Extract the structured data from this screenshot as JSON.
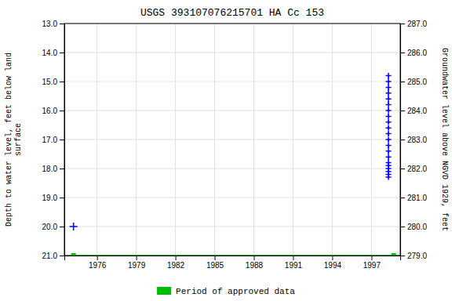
{
  "chart_data": {
    "type": "line",
    "title": "USGS 393107076215701 HA Cc 153",
    "ylabel": "Depth to water level, feet below land\nsurface",
    "y2label": "Groundwater level above NGVD 1929, feet",
    "xlim": [
      1973.5,
      1999.2
    ],
    "xticks": [
      1976,
      1979,
      1982,
      1985,
      1988,
      1991,
      1994,
      1997
    ],
    "ylim": [
      21.0,
      13.0
    ],
    "yticks": [
      {
        "value": 13.0,
        "label": "13.0"
      },
      {
        "value": 14.0,
        "label": "14.0"
      },
      {
        "value": 15.0,
        "label": "15.0"
      },
      {
        "value": 16.0,
        "label": "16.0"
      },
      {
        "value": 17.0,
        "label": "17.0"
      },
      {
        "value": 18.0,
        "label": "18.0"
      },
      {
        "value": 19.0,
        "label": "19.0"
      },
      {
        "value": 20.0,
        "label": "20.0"
      },
      {
        "value": 21.0,
        "label": "21.0"
      }
    ],
    "y2lim": [
      279.0,
      287.0
    ],
    "y2ticks": [
      {
        "value": 287.0,
        "label": "287.0"
      },
      {
        "value": 286.0,
        "label": "286.0"
      },
      {
        "value": 285.0,
        "label": "285.0"
      },
      {
        "value": 284.0,
        "label": "284.0"
      },
      {
        "value": 283.0,
        "label": "283.0"
      },
      {
        "value": 282.0,
        "label": "282.0"
      },
      {
        "value": 281.0,
        "label": "281.0"
      },
      {
        "value": 280.0,
        "label": "280.0"
      },
      {
        "value": 279.0,
        "label": "279.0"
      }
    ],
    "grid": true,
    "legend": "bottom",
    "series": [
      {
        "name": "Period of approved data",
        "color": "#00bb00",
        "marker": "square",
        "line_style": "solid",
        "x": [
          1974.2,
          1998.7
        ],
        "values": [
          21.0,
          21.0
        ]
      },
      {
        "color": "#0000ff",
        "marker": "plus",
        "line_style": "none",
        "x": [
          1974.2
        ],
        "values": [
          20.0
        ]
      },
      {
        "color": "#0000ff",
        "marker": "plus",
        "line_style": "dashed",
        "x": [
          1998.3,
          1998.3,
          1998.3,
          1998.3,
          1998.3,
          1998.3,
          1998.3,
          1998.3,
          1998.3,
          1998.3,
          1998.3,
          1998.3,
          1998.3,
          1998.3,
          1998.3,
          1998.3,
          1998.3,
          1998.3,
          1998.3,
          1998.3,
          1998.3
        ],
        "values": [
          14.8,
          15.0,
          15.2,
          15.4,
          15.6,
          15.8,
          16.0,
          16.2,
          16.4,
          16.6,
          16.8,
          17.0,
          17.2,
          17.4,
          17.6,
          17.8,
          17.9,
          18.0,
          18.1,
          18.2,
          18.3
        ]
      }
    ]
  }
}
